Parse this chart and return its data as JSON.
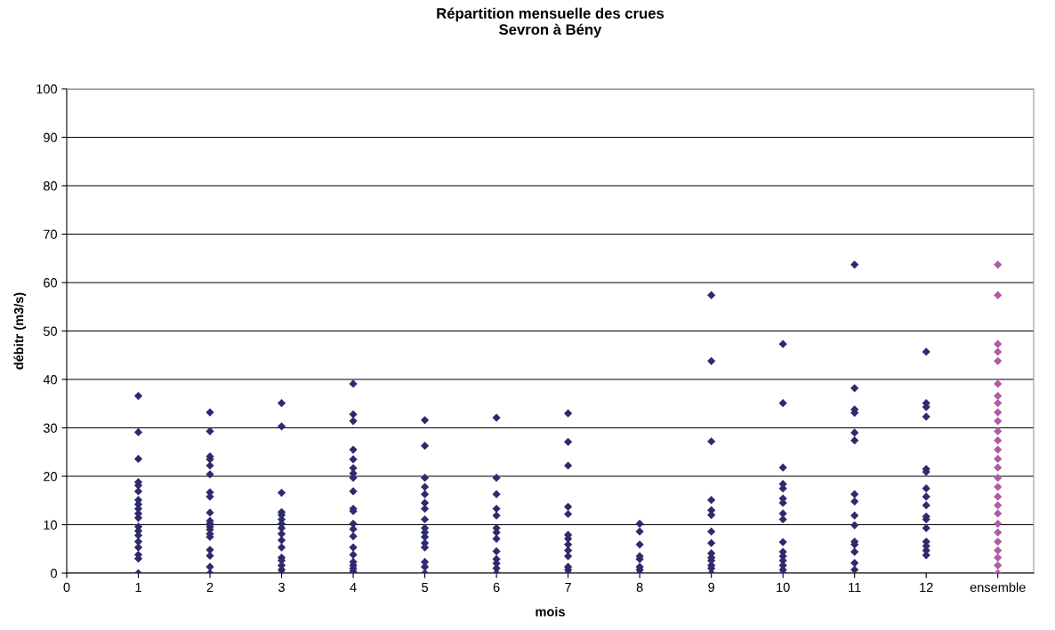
{
  "chart_data": {
    "type": "scatter",
    "title": "Répartition mensuelle des crues\nSevron à Bény",
    "xlabel": "mois",
    "ylabel": "débitr (m3/s)",
    "xlim": [
      0,
      13.5
    ],
    "xticks": [
      0,
      1,
      2,
      3,
      4,
      5,
      6,
      7,
      8,
      9,
      10,
      11,
      12,
      {
        "value": 13,
        "label": "ensemble"
      }
    ],
    "ylim": [
      0,
      100
    ],
    "yticks": [
      0,
      10,
      20,
      30,
      40,
      50,
      60,
      70,
      80,
      90,
      100
    ],
    "grid": "y",
    "legend": false,
    "marker": "diamond",
    "series": [
      {
        "color": "#2e2a6e",
        "x": [
          1,
          1,
          1,
          1,
          1,
          1,
          1,
          1,
          1,
          1,
          1,
          1,
          1,
          1,
          1,
          1,
          1,
          1,
          1
        ],
        "values": [
          36.6,
          29.1,
          23.6,
          18.8,
          18.1,
          16.9,
          15.1,
          14.2,
          13.3,
          12.3,
          11.4,
          9.6,
          8.7,
          7.8,
          6.5,
          5.3,
          3.8,
          3.0,
          0
        ]
      },
      {
        "color": "#2e2a6e",
        "x": [
          2,
          2,
          2,
          2,
          2,
          2,
          2,
          2,
          2,
          2,
          2,
          2,
          2,
          2,
          2,
          2,
          2,
          2,
          2
        ],
        "values": [
          33.2,
          29.3,
          24.1,
          23.5,
          22.2,
          20.4,
          16.7,
          15.8,
          12.5,
          10.8,
          10.2,
          9.6,
          9.0,
          8.1,
          7.5,
          4.8,
          3.6,
          1.3,
          0
        ]
      },
      {
        "color": "#2e2a6e",
        "x": [
          3,
          3,
          3,
          3,
          3,
          3,
          3,
          3,
          3,
          3,
          3,
          3,
          3,
          3,
          3,
          3
        ],
        "values": [
          35.1,
          30.3,
          16.6,
          12.6,
          12.0,
          11.1,
          10.2,
          9.3,
          8.1,
          6.8,
          5.3,
          3.2,
          2.6,
          1.6,
          0.7,
          0
        ]
      },
      {
        "color": "#2e2a6e",
        "x": [
          4,
          4,
          4,
          4,
          4,
          4,
          4,
          4,
          4,
          4,
          4,
          4,
          4,
          4,
          4,
          4,
          4,
          4,
          4,
          4,
          4
        ],
        "values": [
          39.1,
          32.8,
          31.4,
          25.5,
          23.5,
          21.7,
          20.6,
          19.7,
          16.9,
          13.3,
          12.8,
          10.2,
          9.1,
          7.6,
          5.3,
          3.8,
          2.3,
          1.6,
          1.0,
          0.4,
          0
        ]
      },
      {
        "color": "#2e2a6e",
        "x": [
          5,
          5,
          5,
          5,
          5,
          5,
          5,
          5,
          5,
          5,
          5,
          5,
          5,
          5,
          5,
          5
        ],
        "values": [
          31.6,
          26.3,
          19.7,
          17.8,
          16.3,
          14.5,
          13.3,
          11.1,
          9.3,
          8.4,
          7.5,
          6.2,
          5.3,
          2.3,
          1.3,
          0
        ]
      },
      {
        "color": "#2e2a6e",
        "x": [
          6,
          6,
          6,
          6,
          6,
          6,
          6,
          6,
          6,
          6,
          6,
          6,
          6
        ],
        "values": [
          32.1,
          19.7,
          16.3,
          13.3,
          11.9,
          9.3,
          8.4,
          7.1,
          4.5,
          2.9,
          2.0,
          1.0,
          0
        ]
      },
      {
        "color": "#2e2a6e",
        "x": [
          7,
          7,
          7,
          7,
          7,
          7,
          7,
          7,
          7,
          7,
          7,
          7,
          7
        ],
        "values": [
          33.0,
          27.1,
          22.2,
          13.7,
          12.2,
          7.9,
          7.1,
          5.9,
          4.7,
          3.5,
          1.3,
          0.7,
          0
        ]
      },
      {
        "color": "#2e2a6e",
        "x": [
          8,
          8,
          8,
          8,
          8,
          8,
          8,
          8
        ],
        "values": [
          10.2,
          8.6,
          5.9,
          3.5,
          2.9,
          1.3,
          0.7,
          0
        ]
      },
      {
        "color": "#2e2a6e",
        "x": [
          9,
          9,
          9,
          9,
          9,
          9,
          9,
          9,
          9,
          9,
          9,
          9,
          9,
          9
        ],
        "values": [
          57.4,
          43.8,
          27.2,
          15.1,
          13.0,
          12.0,
          8.6,
          6.2,
          4.1,
          3.2,
          2.6,
          1.6,
          1.0,
          0
        ]
      },
      {
        "color": "#2e2a6e",
        "x": [
          10,
          10,
          10,
          10,
          10,
          10,
          10,
          10,
          10,
          10,
          10,
          10,
          10,
          10,
          10,
          10
        ],
        "values": [
          47.3,
          35.1,
          21.8,
          18.4,
          17.5,
          15.4,
          14.5,
          12.3,
          11.1,
          6.4,
          4.4,
          3.5,
          2.6,
          1.6,
          0.7,
          0
        ]
      },
      {
        "color": "#2e2a6e",
        "x": [
          11,
          11,
          11,
          11,
          11,
          11,
          11,
          11,
          11,
          11,
          11,
          11,
          11,
          11,
          11
        ],
        "values": [
          63.7,
          38.2,
          33.8,
          33.1,
          29.0,
          27.4,
          16.3,
          14.8,
          11.9,
          9.9,
          6.5,
          5.9,
          4.4,
          2.1,
          0.7
        ]
      },
      {
        "color": "#2e2a6e",
        "x": [
          12,
          12,
          12,
          12,
          12,
          12,
          12,
          12,
          12,
          12,
          12,
          12,
          12,
          12,
          12,
          12
        ],
        "values": [
          45.7,
          35.1,
          34.3,
          32.3,
          21.5,
          20.9,
          17.5,
          15.8,
          14.0,
          11.7,
          11.1,
          9.3,
          6.5,
          5.6,
          4.7,
          3.7
        ]
      },
      {
        "color": "#b05aa8",
        "x": [
          13,
          13,
          13,
          13,
          13,
          13,
          13,
          13,
          13,
          13,
          13,
          13,
          13,
          13,
          13,
          13,
          13,
          13,
          13,
          13,
          13,
          13,
          13,
          13,
          13,
          13,
          13
        ],
        "values": [
          63.7,
          57.4,
          47.3,
          45.7,
          43.8,
          39.1,
          36.6,
          35.1,
          33.2,
          31.4,
          29.3,
          27.4,
          25.5,
          23.6,
          21.8,
          19.7,
          17.8,
          15.8,
          14.0,
          12.3,
          10.2,
          8.4,
          6.5,
          4.7,
          3.2,
          1.6,
          0
        ]
      }
    ]
  }
}
